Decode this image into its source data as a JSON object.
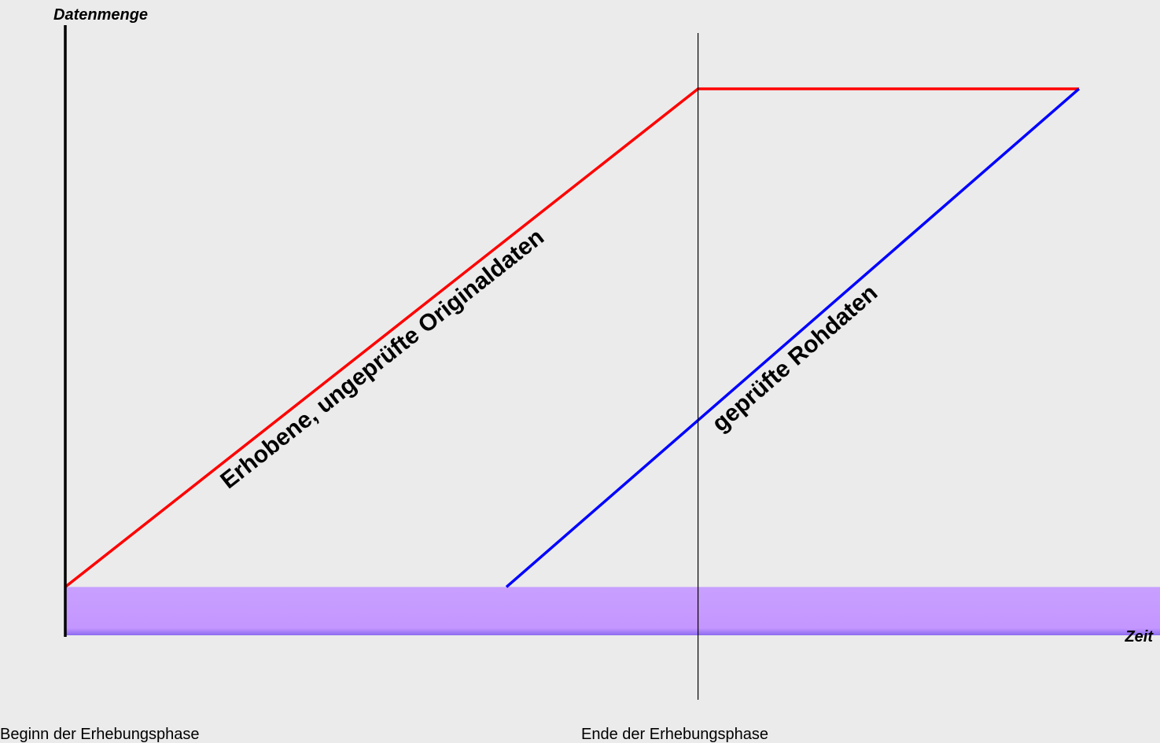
{
  "chart_data": {
    "type": "line",
    "title": "",
    "ylabel": "Datenmenge",
    "xlabel": "Zeit",
    "xlim": [
      0,
      1
    ],
    "ylim": [
      0,
      1
    ],
    "series": [
      {
        "name": "Erhobene, ungeprüfte Originaldaten",
        "color": "#ff0000",
        "x": [
          0,
          0.578,
          0.926
        ],
        "y": [
          0.08,
          0.905,
          0.905
        ]
      },
      {
        "name": "geprüfte Rohdaten",
        "color": "#0000ff",
        "x": [
          0.403,
          0.926
        ],
        "y": [
          0.08,
          0.905
        ]
      }
    ],
    "baseline_band": {
      "y_from": 0,
      "y_to": 0.08,
      "color": "#c896ff"
    },
    "markers": [
      {
        "x": 0,
        "label": "Beginn der Erhebungsphase"
      },
      {
        "x": 0.578,
        "label": "Ende der Erhebungsphase"
      }
    ],
    "grid": false,
    "legend": "none"
  }
}
